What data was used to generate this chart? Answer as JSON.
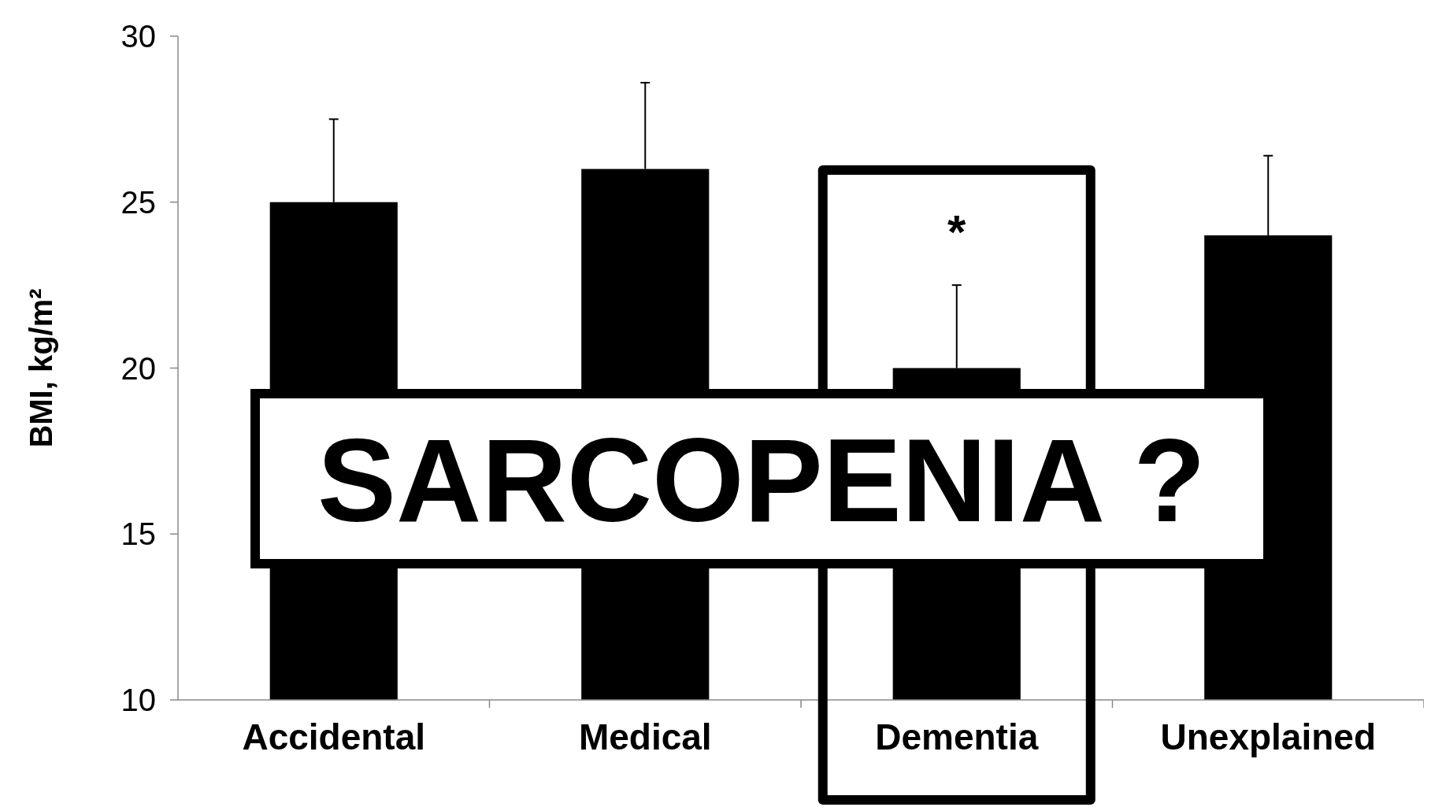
{
  "chart_data": {
    "type": "bar",
    "ylabel": "BMI, kg/m²",
    "categories": [
      "Accidental",
      "Medical",
      "Dementia",
      "Unexplained"
    ],
    "values": [
      25,
      26,
      20,
      24
    ],
    "color": "#000000",
    "errors": [
      [
        25,
        27.5
      ],
      [
        26,
        28.6
      ],
      [
        20,
        22.5
      ],
      [
        24,
        26.4
      ]
    ],
    "ylim": [
      10,
      30
    ],
    "yticks": [
      10,
      15,
      20,
      25,
      30
    ],
    "annotations": [
      "*",
      "SARCOPENIA ?"
    ]
  }
}
